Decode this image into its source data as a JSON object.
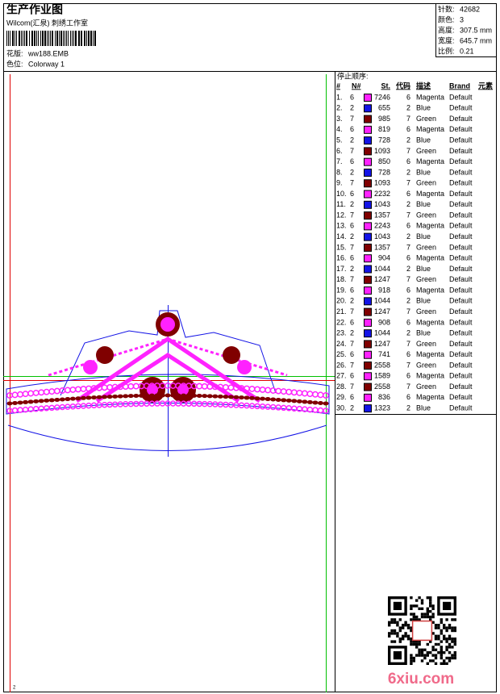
{
  "header": {
    "title": "生产作业图",
    "company": "Wilcom(汇泉) 刺绣工作室",
    "design_label": "花版:",
    "design": "ww188.EMB",
    "colorway_label": "色位:",
    "colorway": "Colorway 1"
  },
  "stats": [
    {
      "label": "针数:",
      "value": "42682"
    },
    {
      "label": "颜色:",
      "value": "3"
    },
    {
      "label": "高度:",
      "value": "307.5 mm"
    },
    {
      "label": "宽度:",
      "value": "645.7 mm"
    },
    {
      "label": "比例:",
      "value": "0.21"
    }
  ],
  "stop_sequence": {
    "title": "停止顺序:",
    "columns": [
      "#",
      "N#",
      "St.",
      "代码",
      "描述",
      "Brand",
      "元素"
    ],
    "rows": [
      {
        "no": "1.",
        "n": 6,
        "color": "#ff22ff",
        "st": 7246,
        "code": 6,
        "desc": "Magenta",
        "brand": "Default"
      },
      {
        "no": "2.",
        "n": 2,
        "color": "#1414e6",
        "st": 655,
        "code": 2,
        "desc": "Blue",
        "brand": "Default"
      },
      {
        "no": "3.",
        "n": 7,
        "color": "#800000",
        "st": 985,
        "code": 7,
        "desc": "Green",
        "brand": "Default"
      },
      {
        "no": "4.",
        "n": 6,
        "color": "#ff22ff",
        "st": 819,
        "code": 6,
        "desc": "Magenta",
        "brand": "Default"
      },
      {
        "no": "5.",
        "n": 2,
        "color": "#1414e6",
        "st": 728,
        "code": 2,
        "desc": "Blue",
        "brand": "Default"
      },
      {
        "no": "6.",
        "n": 7,
        "color": "#800000",
        "st": 1093,
        "code": 7,
        "desc": "Green",
        "brand": "Default"
      },
      {
        "no": "7.",
        "n": 6,
        "color": "#ff22ff",
        "st": 850,
        "code": 6,
        "desc": "Magenta",
        "brand": "Default"
      },
      {
        "no": "8.",
        "n": 2,
        "color": "#1414e6",
        "st": 728,
        "code": 2,
        "desc": "Blue",
        "brand": "Default"
      },
      {
        "no": "9.",
        "n": 7,
        "color": "#800000",
        "st": 1093,
        "code": 7,
        "desc": "Green",
        "brand": "Default"
      },
      {
        "no": "10.",
        "n": 6,
        "color": "#ff22ff",
        "st": 2232,
        "code": 6,
        "desc": "Magenta",
        "brand": "Default"
      },
      {
        "no": "11.",
        "n": 2,
        "color": "#1414e6",
        "st": 1043,
        "code": 2,
        "desc": "Blue",
        "brand": "Default"
      },
      {
        "no": "12.",
        "n": 7,
        "color": "#800000",
        "st": 1357,
        "code": 7,
        "desc": "Green",
        "brand": "Default"
      },
      {
        "no": "13.",
        "n": 6,
        "color": "#ff22ff",
        "st": 2243,
        "code": 6,
        "desc": "Magenta",
        "brand": "Default"
      },
      {
        "no": "14.",
        "n": 2,
        "color": "#1414e6",
        "st": 1043,
        "code": 2,
        "desc": "Blue",
        "brand": "Default"
      },
      {
        "no": "15.",
        "n": 7,
        "color": "#800000",
        "st": 1357,
        "code": 7,
        "desc": "Green",
        "brand": "Default"
      },
      {
        "no": "16.",
        "n": 6,
        "color": "#ff22ff",
        "st": 904,
        "code": 6,
        "desc": "Magenta",
        "brand": "Default"
      },
      {
        "no": "17.",
        "n": 2,
        "color": "#1414e6",
        "st": 1044,
        "code": 2,
        "desc": "Blue",
        "brand": "Default"
      },
      {
        "no": "18.",
        "n": 7,
        "color": "#800000",
        "st": 1247,
        "code": 7,
        "desc": "Green",
        "brand": "Default"
      },
      {
        "no": "19.",
        "n": 6,
        "color": "#ff22ff",
        "st": 918,
        "code": 6,
        "desc": "Magenta",
        "brand": "Default"
      },
      {
        "no": "20.",
        "n": 2,
        "color": "#1414e6",
        "st": 1044,
        "code": 2,
        "desc": "Blue",
        "brand": "Default"
      },
      {
        "no": "21.",
        "n": 7,
        "color": "#800000",
        "st": 1247,
        "code": 7,
        "desc": "Green",
        "brand": "Default"
      },
      {
        "no": "22.",
        "n": 6,
        "color": "#ff22ff",
        "st": 908,
        "code": 6,
        "desc": "Magenta",
        "brand": "Default"
      },
      {
        "no": "23.",
        "n": 2,
        "color": "#1414e6",
        "st": 1044,
        "code": 2,
        "desc": "Blue",
        "brand": "Default"
      },
      {
        "no": "24.",
        "n": 7,
        "color": "#800000",
        "st": 1247,
        "code": 7,
        "desc": "Green",
        "brand": "Default"
      },
      {
        "no": "25.",
        "n": 6,
        "color": "#ff22ff",
        "st": 741,
        "code": 6,
        "desc": "Magenta",
        "brand": "Default"
      },
      {
        "no": "26.",
        "n": 7,
        "color": "#800000",
        "st": 2558,
        "code": 7,
        "desc": "Green",
        "brand": "Default"
      },
      {
        "no": "27.",
        "n": 6,
        "color": "#ff22ff",
        "st": 1589,
        "code": 6,
        "desc": "Magenta",
        "brand": "Default"
      },
      {
        "no": "28.",
        "n": 7,
        "color": "#800000",
        "st": 2558,
        "code": 7,
        "desc": "Green",
        "brand": "Default"
      },
      {
        "no": "29.",
        "n": 6,
        "color": "#ff22ff",
        "st": 836,
        "code": 6,
        "desc": "Magenta",
        "brand": "Default"
      },
      {
        "no": "30.",
        "n": 2,
        "color": "#1414e6",
        "st": 1323,
        "code": 2,
        "desc": "Blue",
        "brand": "Default"
      }
    ]
  },
  "page_marker": "2",
  "watermark": "6xiu.com"
}
